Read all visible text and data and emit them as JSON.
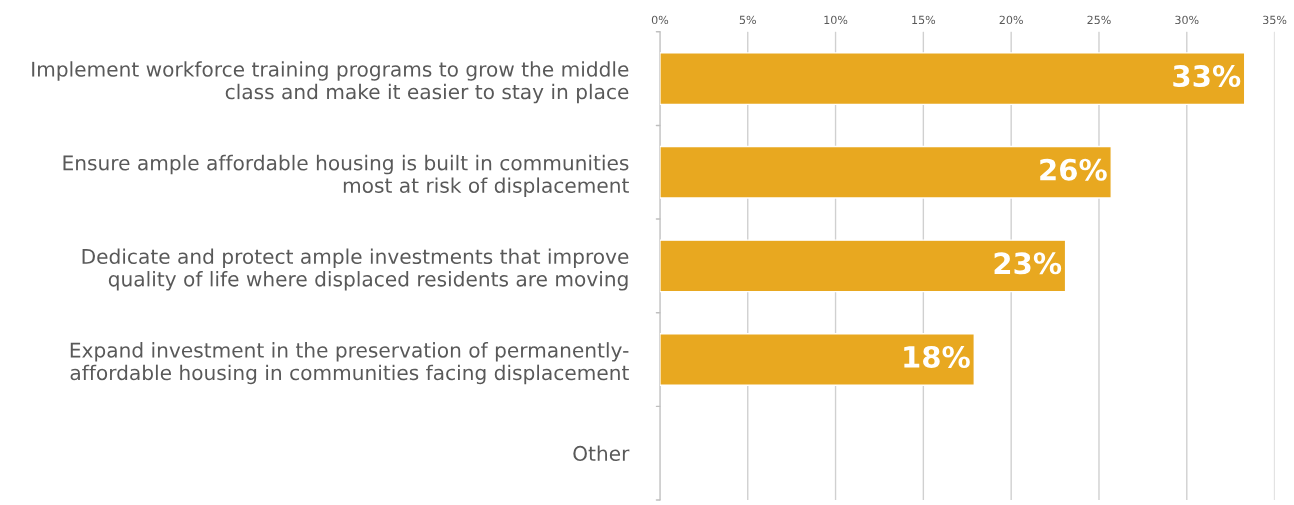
{
  "chart_data": {
    "type": "bar",
    "orientation": "horizontal",
    "categories": [
      "Implement workforce training programs to grow the middle\nclass and make it easier to stay in place",
      "Ensure ample affordable housing is built in communities\nmost at risk of displacement",
      "Dedicate and protect ample investments that improve\nquality of life where displaced residents are moving",
      "Expand investment in the preservation of permanently-\naffordable housing in communities facing displacement",
      "Other"
    ],
    "values": [
      33.3,
      25.7,
      23.1,
      17.9,
      null
    ],
    "value_labels": [
      "33%",
      "26%",
      "23%",
      "18%",
      null
    ],
    "color": "#e8a820",
    "xlim": [
      0,
      35
    ],
    "xticks": [
      {
        "value": 0,
        "label": "0%"
      },
      {
        "value": 5,
        "label": "5%"
      },
      {
        "value": 10,
        "label": "10%"
      },
      {
        "value": 15,
        "label": "15%"
      },
      {
        "value": 20,
        "label": "20%"
      },
      {
        "value": 25,
        "label": "25%"
      },
      {
        "value": 30,
        "label": "30%"
      },
      {
        "value": 35,
        "label": "35%"
      }
    ],
    "grid": "x"
  }
}
